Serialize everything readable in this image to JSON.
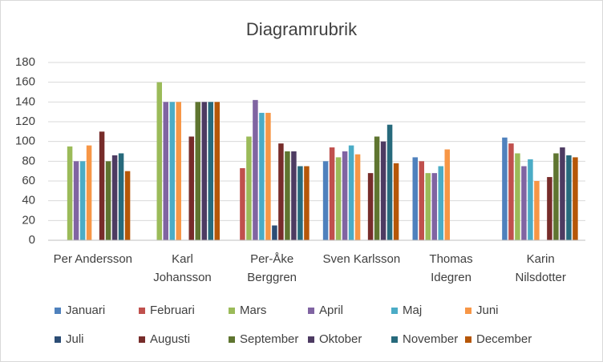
{
  "chart_data": {
    "type": "bar",
    "title": "Diagramrubrik",
    "categories": [
      "Per Andersson",
      "Karl Johansson",
      "Per-Åke Berggren",
      "Sven Karlsson",
      "Thomas Idegren",
      "Karin Nilsdotter"
    ],
    "series": [
      {
        "name": "Januari",
        "color": "#4F81BD",
        "values": [
          null,
          null,
          null,
          80,
          84,
          104
        ]
      },
      {
        "name": "Februari",
        "color": "#C0504D",
        "values": [
          null,
          null,
          73,
          94,
          80,
          98
        ]
      },
      {
        "name": "Mars",
        "color": "#9BBB59",
        "values": [
          95,
          160,
          105,
          84,
          68,
          88
        ]
      },
      {
        "name": "April",
        "color": "#8064A2",
        "values": [
          80,
          140,
          142,
          90,
          68,
          75
        ]
      },
      {
        "name": "Maj",
        "color": "#4BACC6",
        "values": [
          80,
          140,
          129,
          96,
          75,
          82
        ]
      },
      {
        "name": "Juni",
        "color": "#F79646",
        "values": [
          96,
          140,
          129,
          87,
          92,
          60
        ]
      },
      {
        "name": "Juli",
        "color": "#2C4D75",
        "values": [
          null,
          null,
          15,
          null,
          null,
          null
        ]
      },
      {
        "name": "Augusti",
        "color": "#772C2A",
        "values": [
          110,
          105,
          98,
          68,
          null,
          64
        ]
      },
      {
        "name": "September",
        "color": "#5F7530",
        "values": [
          80,
          140,
          90,
          105,
          null,
          88
        ]
      },
      {
        "name": "Oktober",
        "color": "#4D3B62",
        "values": [
          86,
          140,
          90,
          100,
          null,
          94
        ]
      },
      {
        "name": "November",
        "color": "#276A7C",
        "values": [
          88,
          140,
          75,
          117,
          null,
          86
        ]
      },
      {
        "name": "December",
        "color": "#B65708",
        "values": [
          70,
          140,
          75,
          78,
          null,
          84
        ]
      }
    ],
    "ylim": [
      0,
      180
    ],
    "yticks": [
      0,
      20,
      40,
      60,
      80,
      100,
      120,
      140,
      160,
      180
    ],
    "grid": true,
    "legend": "bottom"
  }
}
